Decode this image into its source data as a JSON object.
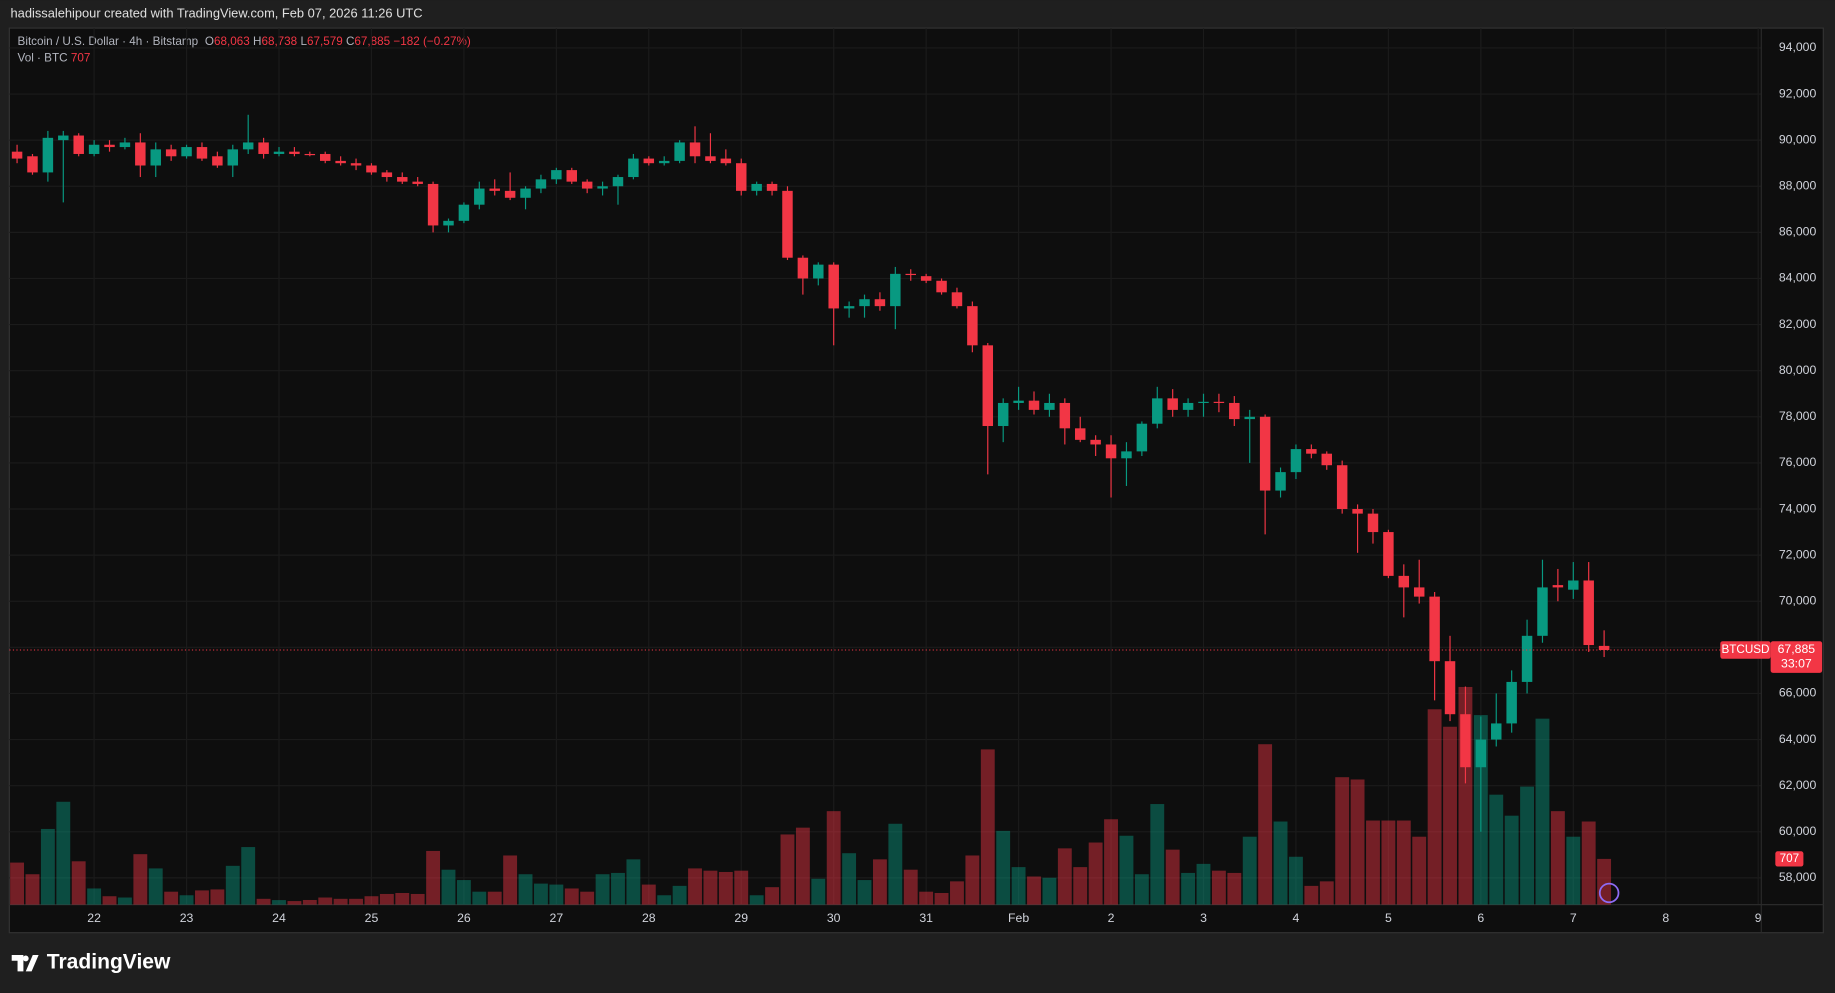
{
  "header": {
    "caption": "hadissalehipour created with TradingView.com, Feb 07, 2026 11:26 UTC"
  },
  "legend": {
    "symbol": "Bitcoin / U.S. Dollar · 4h · Bitstamp",
    "o_label": "O",
    "open": "68,063",
    "h_label": "H",
    "high": "68,738",
    "l_label": "L",
    "low": "67,579",
    "c_label": "C",
    "close": "67,885",
    "change": "−182 (−0.27%)",
    "volume_name": "Vol · BTC",
    "volume": "707"
  },
  "price_label": {
    "symbol": "BTCUSD",
    "price": "67,885",
    "countdown": "33:07"
  },
  "footer": {
    "brand": "TradingView"
  },
  "chart_data": {
    "type": "candlestick",
    "up_color": "#089981",
    "down_color": "#f23645",
    "grid": true,
    "open": [
      89500,
      89300,
      88600,
      90000,
      90200,
      89400,
      89800,
      89700,
      89900,
      88900,
      89600,
      89300,
      89700,
      89300,
      88900,
      89600,
      89900,
      89400,
      89500,
      89400,
      89400,
      89100,
      89000,
      88900,
      88600,
      88400,
      88200,
      88100,
      86300,
      86500,
      87200,
      87900,
      87800,
      87500,
      87900,
      88300,
      88700,
      88200,
      87900,
      88000,
      88400,
      89200,
      89000,
      89100,
      89900,
      89300,
      89200,
      89000,
      87800,
      88100,
      87800,
      84900,
      84000,
      84600,
      82700,
      82800,
      83100,
      82800,
      84200,
      84100,
      83900,
      83400,
      82800,
      81100,
      77600,
      78600,
      78700,
      78300,
      78600,
      77500,
      77000,
      76800,
      76200,
      76500,
      77700,
      78800,
      78300,
      78600,
      78650,
      78600,
      77900,
      78000,
      74800,
      75600,
      76600,
      76400,
      75900,
      74000,
      73800,
      73000,
      71100,
      70600,
      70200,
      67400,
      65100,
      62800,
      64000,
      64700,
      66500,
      68500,
      70700,
      70500,
      70900,
      68063
    ],
    "high": [
      89800,
      89400,
      90400,
      90400,
      90300,
      90000,
      90000,
      90100,
      90300,
      89900,
      89800,
      89800,
      89900,
      89500,
      89800,
      91100,
      90100,
      89700,
      89700,
      89500,
      89500,
      89300,
      89200,
      89000,
      88700,
      88600,
      88400,
      88200,
      86600,
      87300,
      88200,
      88300,
      88600,
      88000,
      88500,
      88800,
      88800,
      88300,
      88200,
      88500,
      89400,
      89300,
      89300,
      90000,
      90600,
      90300,
      89600,
      89200,
      88200,
      88200,
      88000,
      85000,
      84700,
      84700,
      83000,
      83300,
      83400,
      84500,
      84400,
      84200,
      84000,
      83600,
      83000,
      81200,
      78800,
      79300,
      79100,
      79000,
      78800,
      78000,
      77200,
      77200,
      76900,
      77800,
      79300,
      79200,
      78800,
      79000,
      79000,
      78900,
      78300,
      78100,
      75800,
      76800,
      76800,
      76500,
      76100,
      74200,
      74000,
      73100,
      71600,
      71800,
      70400,
      68500,
      66300,
      65000,
      66000,
      67000,
      69200,
      71800,
      71400,
      71700,
      71700,
      68738
    ],
    "low": [
      89000,
      88500,
      88200,
      87300,
      89300,
      89300,
      89500,
      89600,
      88400,
      88400,
      89100,
      89200,
      89100,
      88800,
      88400,
      89400,
      89200,
      89300,
      89300,
      89300,
      89000,
      88900,
      88700,
      88500,
      88200,
      88100,
      88000,
      86000,
      86000,
      86400,
      87000,
      87600,
      87400,
      87000,
      87700,
      88100,
      88100,
      87700,
      87600,
      87200,
      88300,
      88900,
      88900,
      89000,
      89000,
      89000,
      88900,
      87600,
      87600,
      87600,
      84800,
      83300,
      83700,
      81100,
      82300,
      82300,
      82600,
      81800,
      83900,
      83800,
      83300,
      82700,
      80800,
      75500,
      76900,
      78300,
      78100,
      78000,
      76800,
      76900,
      76300,
      74500,
      75000,
      76300,
      77500,
      78000,
      78000,
      78000,
      78200,
      77600,
      76000,
      72900,
      74500,
      75300,
      76200,
      75700,
      73800,
      72100,
      72500,
      71000,
      69300,
      69900,
      65700,
      64800,
      62100,
      60000,
      63700,
      64300,
      66000,
      68200,
      70000,
      70100,
      67800,
      67579
    ],
    "close": [
      89200,
      88600,
      90100,
      90200,
      89400,
      89800,
      89700,
      89900,
      88900,
      89600,
      89300,
      89700,
      89200,
      88900,
      89600,
      89900,
      89400,
      89500,
      89400,
      89350,
      89100,
      89000,
      88900,
      88600,
      88400,
      88200,
      88100,
      86300,
      86500,
      87200,
      87900,
      87800,
      87500,
      87900,
      88300,
      88700,
      88200,
      87900,
      88000,
      88400,
      89200,
      89000,
      89100,
      89900,
      89300,
      89100,
      89000,
      87800,
      88100,
      87800,
      84900,
      84000,
      84600,
      82700,
      82800,
      83100,
      82800,
      84200,
      84150,
      83900,
      83400,
      82800,
      81100,
      77600,
      78600,
      78700,
      78300,
      78600,
      77500,
      77000,
      76800,
      76200,
      76500,
      77700,
      78800,
      78300,
      78600,
      78650,
      78600,
      77900,
      78000,
      74800,
      75600,
      76600,
      76400,
      75900,
      74000,
      73800,
      73000,
      71100,
      70600,
      70200,
      67400,
      65100,
      62800,
      64000,
      64700,
      66500,
      68500,
      70600,
      70600,
      70900,
      68100,
      67885
    ],
    "volume": [
      650,
      470,
      1170,
      1590,
      670,
      250,
      130,
      110,
      780,
      560,
      200,
      145,
      220,
      235,
      600,
      890,
      90,
      70,
      55,
      72,
      110,
      90,
      90,
      130,
      165,
      180,
      165,
      830,
      540,
      380,
      200,
      200,
      760,
      470,
      325,
      310,
      250,
      200,
      470,
      490,
      700,
      310,
      145,
      290,
      560,
      525,
      505,
      525,
      145,
      270,
      1085,
      1190,
      400,
      1445,
      795,
      380,
      700,
      1250,
      540,
      200,
      180,
      360,
      760,
      2400,
      1140,
      580,
      435,
      415,
      870,
      580,
      960,
      1320,
      1065,
      470,
      1555,
      850,
      490,
      630,
      525,
      490,
      1050,
      2480,
      1285,
      740,
      290,
      360,
      1970,
      1935,
      1300,
      1300,
      1300,
      1050,
      3020,
      2750,
      3365,
      2930,
      1700,
      1375,
      1825,
      2875,
      1445,
      1050,
      1285,
      707
    ],
    "xlim": [
      -0.5,
      113.2
    ],
    "xticks": [
      {
        "value": 5,
        "label": "22"
      },
      {
        "value": 11,
        "label": "23"
      },
      {
        "value": 17,
        "label": "24"
      },
      {
        "value": 23,
        "label": "25"
      },
      {
        "value": 29,
        "label": "26"
      },
      {
        "value": 35,
        "label": "27"
      },
      {
        "value": 41,
        "label": "28"
      },
      {
        "value": 47,
        "label": "29"
      },
      {
        "value": 53,
        "label": "30"
      },
      {
        "value": 59,
        "label": "31"
      },
      {
        "value": 65,
        "label": "Feb"
      },
      {
        "value": 71,
        "label": "2"
      },
      {
        "value": 77,
        "label": "3"
      },
      {
        "value": 83,
        "label": "4"
      },
      {
        "value": 89,
        "label": "5"
      },
      {
        "value": 95,
        "label": "6"
      },
      {
        "value": 101,
        "label": "7"
      },
      {
        "value": 107,
        "label": "8"
      },
      {
        "value": 113,
        "label": "9"
      }
    ],
    "ylim": [
      56840,
      94860
    ],
    "yticks": [
      {
        "value": 58000,
        "label": "58,000"
      },
      {
        "value": 60000,
        "label": "60,000"
      },
      {
        "value": 62000,
        "label": "62,000"
      },
      {
        "value": 64000,
        "label": "64,000"
      },
      {
        "value": 66000,
        "label": "66,000"
      },
      {
        "value": 68000,
        "label": "68,000"
      },
      {
        "value": 70000,
        "label": "70,000"
      },
      {
        "value": 72000,
        "label": "72,000"
      },
      {
        "value": 74000,
        "label": "74,000"
      },
      {
        "value": 76000,
        "label": "76,000"
      },
      {
        "value": 78000,
        "label": "78,000"
      },
      {
        "value": 80000,
        "label": "80,000"
      },
      {
        "value": 82000,
        "label": "82,000"
      },
      {
        "value": 84000,
        "label": "84,000"
      },
      {
        "value": 86000,
        "label": "86,000"
      },
      {
        "value": 88000,
        "label": "88,000"
      },
      {
        "value": 90000,
        "label": "90,000"
      },
      {
        "value": 92000,
        "label": "92,000"
      },
      {
        "value": 94000,
        "label": "94,000"
      }
    ]
  }
}
